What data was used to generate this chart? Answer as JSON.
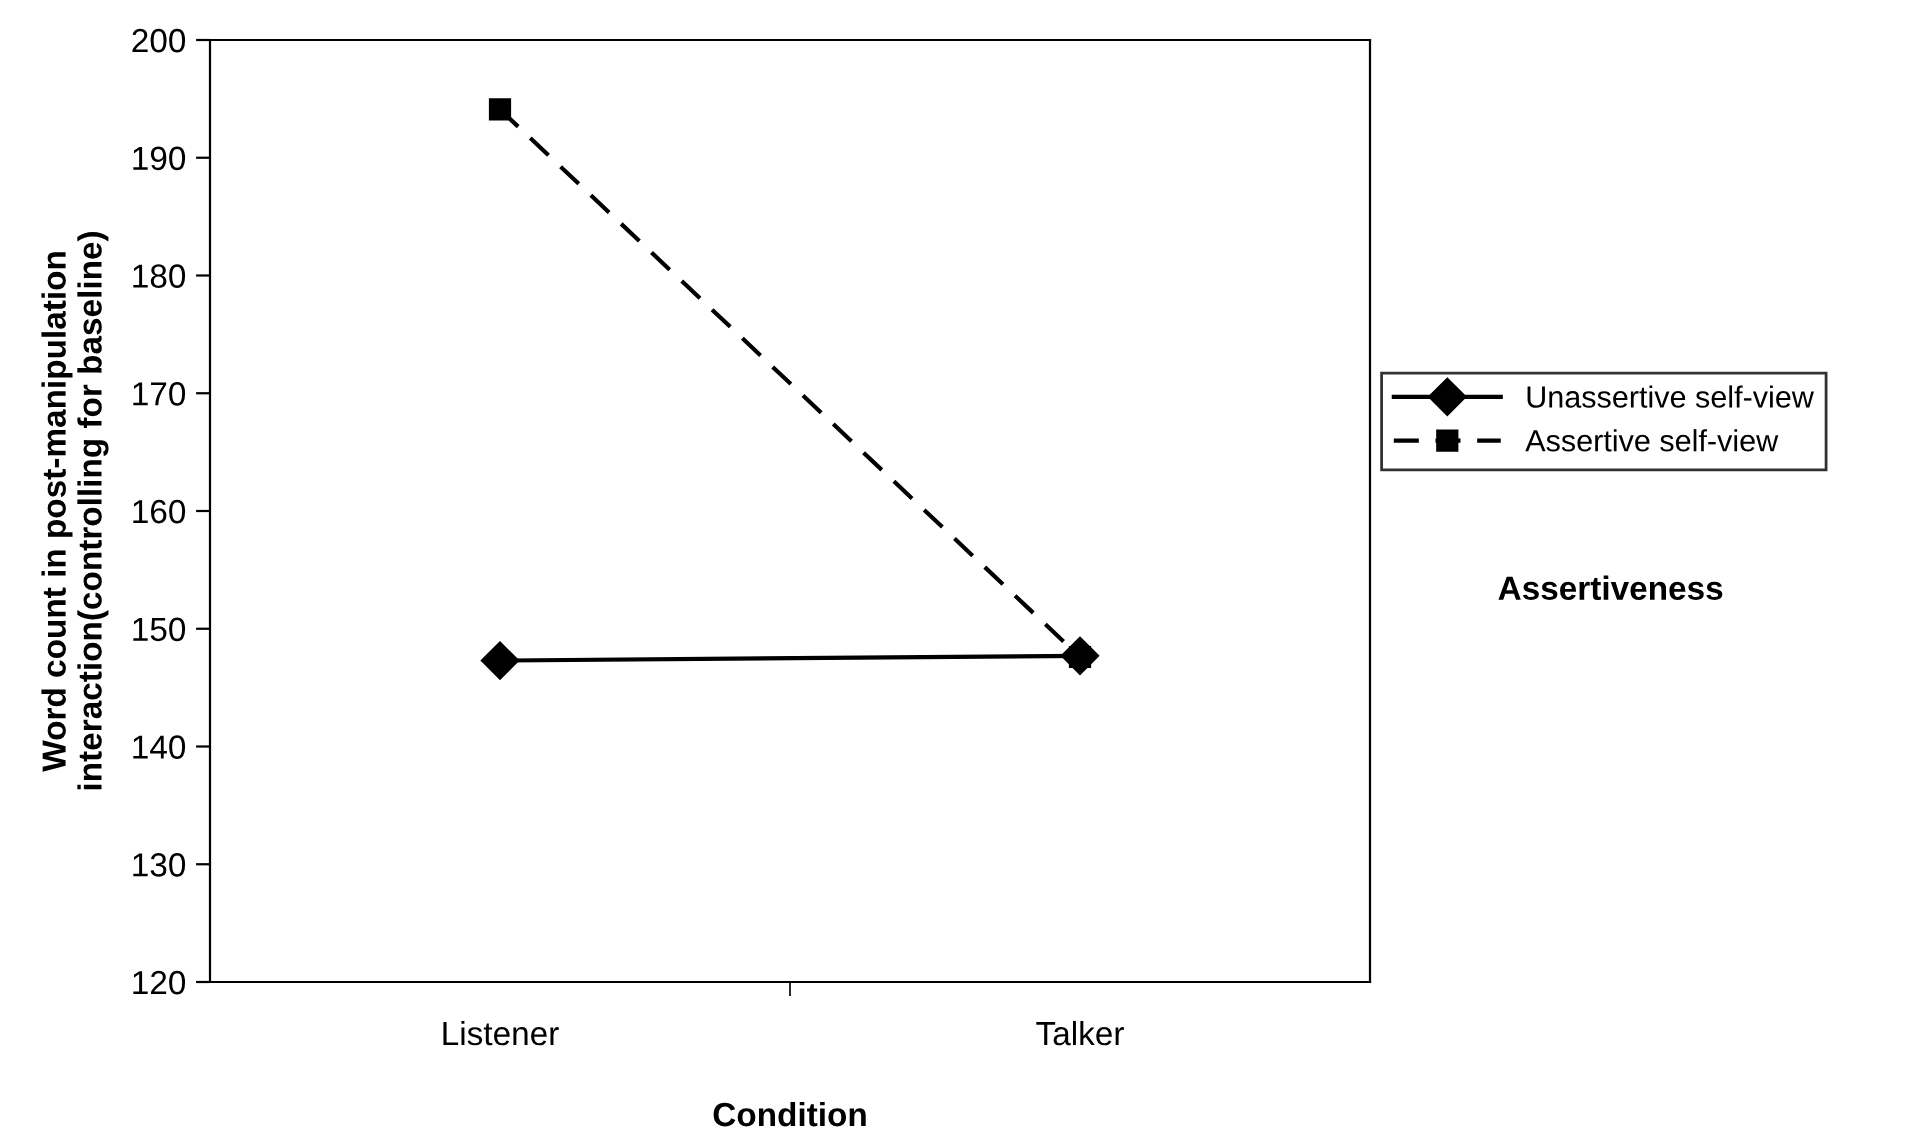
{
  "chart_data": {
    "type": "line",
    "xlabel": "Condition",
    "ylabel": "Word count in post-manipulation\ninteraction(controlling for baseline)",
    "legend_title": "Assertiveness",
    "categories": [
      "Listener",
      "Talker"
    ],
    "series": [
      {
        "name": "Unassertive self-view",
        "color": "#000000",
        "values": [
          147.3,
          147.7
        ],
        "marker": "diamond",
        "line_style": "solid"
      },
      {
        "name": "Assertive self-view",
        "color": "#000000",
        "values": [
          194.1,
          147.6
        ],
        "marker": "square",
        "line_style": "dashed"
      }
    ],
    "ylim": [
      120,
      200
    ],
    "yticks": [
      120,
      130,
      140,
      150,
      160,
      170,
      180,
      190,
      200
    ],
    "grid": false,
    "legend": "right"
  }
}
